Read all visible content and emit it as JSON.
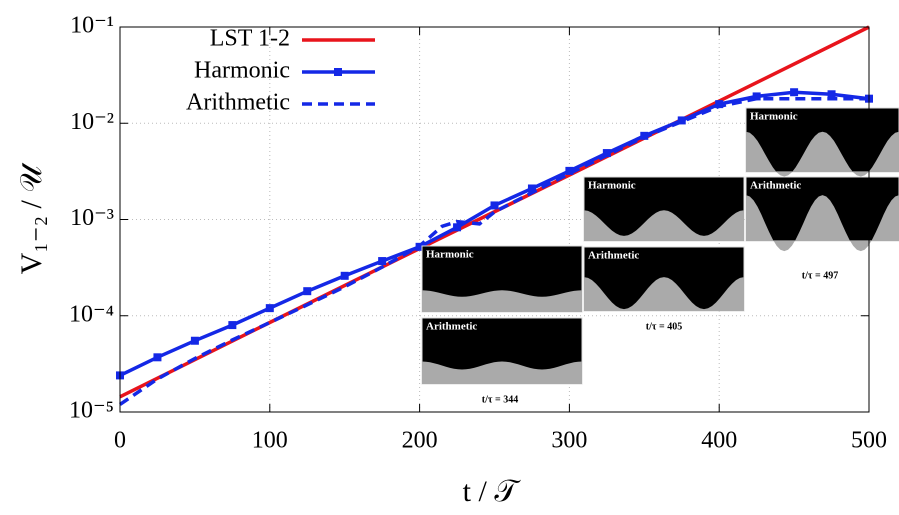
{
  "chart_data": {
    "type": "line",
    "x_label": "t / 𝒯",
    "y_label": "V₁₋₂ / 𝒰",
    "xlim": [
      0,
      500
    ],
    "xticks": [
      0,
      100,
      200,
      300,
      400,
      500
    ],
    "ylim": [
      1e-05,
      0.1
    ],
    "log_y": true,
    "grid": true,
    "legend": "upper-left",
    "yticks": [
      {
        "value": 1e-05,
        "label": "10⁻⁵"
      },
      {
        "value": 0.0001,
        "label": "10⁻⁴"
      },
      {
        "value": 0.001,
        "label": "10⁻³"
      },
      {
        "value": 0.01,
        "label": "10⁻²"
      },
      {
        "value": 0.1,
        "label": "10⁻¹"
      }
    ],
    "series": [
      {
        "name": "LST 1-2",
        "color": "#e8141c",
        "dash": false,
        "marker": null,
        "x": [
          0,
          100,
          200,
          300,
          400,
          500
        ],
        "values": [
          1.44e-05,
          8.5e-05,
          0.0005,
          0.0029,
          0.017,
          0.1
        ]
      },
      {
        "name": "Harmonic",
        "color": "#1428e6",
        "dash": false,
        "marker": "square",
        "x": [
          0,
          25,
          50,
          75,
          100,
          125,
          150,
          175,
          200,
          225,
          250,
          275,
          300,
          325,
          350,
          375,
          400,
          425,
          450,
          475,
          500
        ],
        "values": [
          2.4e-05,
          3.7e-05,
          5.5e-05,
          8e-05,
          0.00012,
          0.00018,
          0.00026,
          0.00037,
          0.00052,
          0.00083,
          0.0014,
          0.0021,
          0.0032,
          0.0049,
          0.0074,
          0.0107,
          0.0158,
          0.019,
          0.021,
          0.02,
          0.018
        ]
      },
      {
        "name": "Arithmetic",
        "color": "#1428e6",
        "dash": true,
        "marker": null,
        "x": [
          0,
          25,
          50,
          75,
          100,
          125,
          150,
          175,
          200,
          215,
          225,
          240,
          250,
          275,
          300,
          350,
          400,
          425,
          450,
          500
        ],
        "values": [
          1.2e-05,
          2.2e-05,
          3.6e-05,
          5.6e-05,
          8.5e-05,
          0.00013,
          0.0002,
          0.00032,
          0.00053,
          0.00085,
          0.00095,
          0.0009,
          0.0012,
          0.0019,
          0.003,
          0.0072,
          0.015,
          0.018,
          0.018,
          0.018
        ]
      }
    ],
    "insets": [
      {
        "panels": [
          "Harmonic",
          "Arithmetic"
        ],
        "time_label": "t/τ = 344"
      },
      {
        "panels": [
          "Harmonic",
          "Arithmetic"
        ],
        "time_label": "t/τ = 405"
      },
      {
        "panels": [
          "Harmonic",
          "Arithmetic"
        ],
        "time_label": "t/τ = 497"
      }
    ]
  }
}
